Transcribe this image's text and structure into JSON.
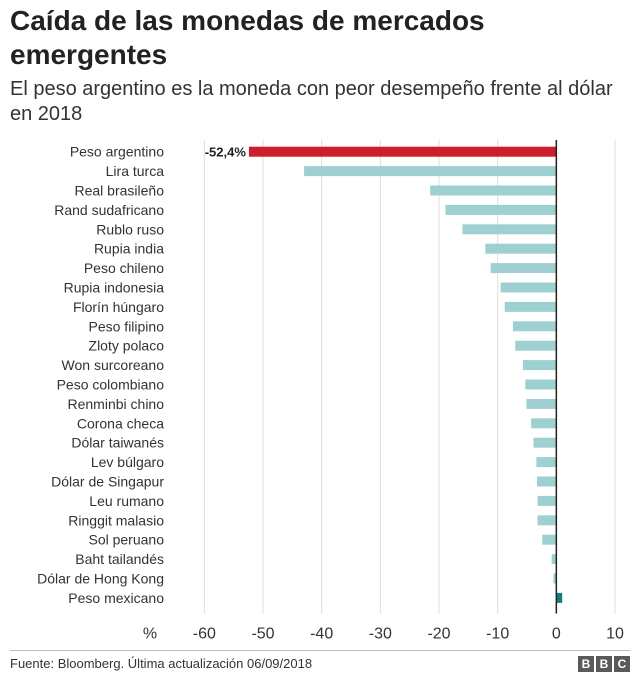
{
  "chart_data": {
    "type": "bar",
    "orientation": "horizontal",
    "title": "Caída de las monedas de mercados emergentes",
    "subtitle": "El peso argentino es la moneda con peor desempeño frente al dólar en 2018",
    "xlabel": "%",
    "xlim": [
      -65,
      10
    ],
    "xticks": [
      -60,
      -50,
      -40,
      -30,
      -20,
      -10,
      0,
      10
    ],
    "grid": true,
    "categories": [
      "Peso argentino",
      "Lira turca",
      "Real brasileño",
      "Rand sudafricano",
      "Rublo ruso",
      "Rupia india",
      "Peso chileno",
      "Rupia indonesia",
      "Florín húngaro",
      "Peso filipino",
      "Zloty polaco",
      "Won surcoreano",
      "Peso colombiano",
      "Renminbi chino",
      "Corona checa",
      "Dólar taiwanés",
      "Lev búlgaro",
      "Dólar de Singapur",
      "Leu rumano",
      "Ringgit malasio",
      "Sol peruano",
      "Baht tailandés",
      "Dólar de Hong Kong",
      "Peso mexicano"
    ],
    "values": [
      -52.4,
      -43.0,
      -21.5,
      -18.9,
      -16.0,
      -12.1,
      -11.2,
      -9.5,
      -8.8,
      -7.4,
      -7.0,
      -5.7,
      -5.3,
      -5.1,
      -4.3,
      -3.9,
      -3.4,
      -3.3,
      -3.2,
      -3.2,
      -2.4,
      -0.8,
      -0.5,
      1.0
    ],
    "annotations": [
      {
        "category": "Peso argentino",
        "text": "-52,4%"
      }
    ],
    "colors": {
      "highlight": "#cc1e2b",
      "default": "#9ed0d1",
      "positive": "#0f7f7f",
      "grid": "#dddddd",
      "zero_line": "#222222"
    }
  },
  "footer": {
    "source": "Fuente: Bloomberg. Última actualización 06/09/2018",
    "logo": [
      "B",
      "B",
      "C"
    ]
  }
}
